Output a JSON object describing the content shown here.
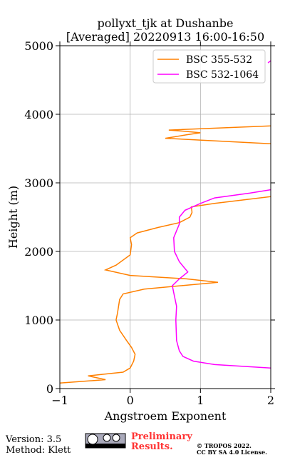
{
  "chart_data": {
    "type": "line",
    "title": "pollyxt_tjk at Dushanbe",
    "subtitle": "[Averaged] 20220913 16:00-16:50",
    "x_label": "Angstroem Exponent",
    "y_label": "Height (m)",
    "xlim": [
      -1,
      2
    ],
    "ylim": [
      0,
      5000
    ],
    "xticks": [
      {
        "value": -1,
        "label": "−1"
      },
      0,
      1,
      2
    ],
    "yticks": [
      0,
      1000,
      2000,
      3000,
      4000,
      5000
    ],
    "grid": true,
    "legend": "upper right",
    "series": [
      {
        "name": "BSC 355-532",
        "color": "#ff8000",
        "x": [
          -1,
          -0.35,
          -0.6,
          -0.1,
          0.0,
          0.05,
          0.07,
          0.02,
          -0.05,
          -0.15,
          -0.2,
          -0.18,
          -0.15,
          -0.1,
          0.2,
          1.25,
          0.8,
          0.0,
          -0.35,
          -0.2,
          0.0,
          0.02,
          0.0,
          0.1,
          0.4,
          0.7,
          0.85,
          0.88,
          0.87,
          1.2,
          2,
          null,
          2,
          0.5,
          0.8,
          1.0,
          0.8,
          0.55,
          2
        ],
        "values": [
          80,
          130,
          185,
          240,
          300,
          400,
          500,
          600,
          700,
          850,
          1000,
          1100,
          1300,
          1380,
          1450,
          1550,
          1600,
          1650,
          1730,
          1800,
          1950,
          2100,
          2200,
          2270,
          2350,
          2420,
          2500,
          2570,
          2650,
          2700,
          2800,
          null,
          3570,
          3650,
          3700,
          3730,
          3750,
          3770,
          3830
        ]
      },
      {
        "name": "BSC 532-1064",
        "color": "#ff00ff",
        "x": [
          2,
          1.2,
          0.9,
          0.75,
          0.7,
          0.66,
          0.65,
          0.66,
          0.62,
          0.6,
          0.7,
          0.82,
          0.7,
          0.63,
          0.62,
          0.7,
          0.7,
          0.78,
          1.0,
          1.2,
          1.7,
          2,
          null,
          1.96,
          2
        ],
        "values": [
          300,
          350,
          400,
          470,
          550,
          700,
          1000,
          1200,
          1400,
          1500,
          1600,
          1700,
          1850,
          2000,
          2200,
          2400,
          2500,
          2600,
          2700,
          2780,
          2850,
          2900,
          null,
          4750,
          4780
        ]
      }
    ]
  },
  "footer": {
    "version": "Version: 3.5",
    "method": "Method: Klett",
    "preliminary": "Preliminary",
    "results": "Results.",
    "copyright": "© TROPOS 2022.",
    "license": "CC BY SA 4.0 License."
  }
}
